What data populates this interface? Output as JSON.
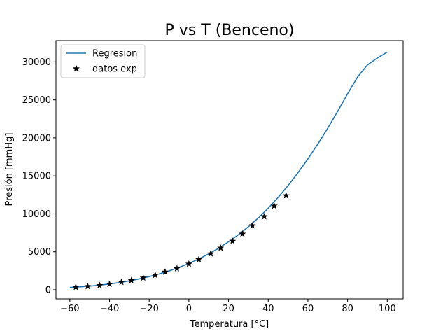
{
  "chart_data": {
    "type": "line",
    "title": "P vs T (Benceno)",
    "xlabel": "Temperatura [°C]",
    "ylabel": "Presión [mmHg]",
    "xlim": [
      -67,
      108
    ],
    "ylim": [
      -1200,
      32800
    ],
    "xticks": [
      -60,
      -40,
      -20,
      0,
      20,
      40,
      60,
      80,
      100
    ],
    "yticks": [
      0,
      5000,
      10000,
      15000,
      20000,
      25000,
      30000
    ],
    "grid": false,
    "legend_position": "top-left",
    "series": [
      {
        "name": "Regresion",
        "kind": "line",
        "color": "#1f77b4",
        "x": [
          -60,
          -55,
          -50,
          -45,
          -40,
          -35,
          -30,
          -25,
          -20,
          -15,
          -10,
          -5,
          0,
          5,
          10,
          15,
          20,
          25,
          30,
          35,
          40,
          45,
          50,
          55,
          60,
          65,
          70,
          75,
          80,
          85,
          90,
          95,
          100
        ],
        "y": [
          300,
          380,
          480,
          600,
          760,
          950,
          1170,
          1430,
          1730,
          2080,
          2480,
          2940,
          3460,
          4050,
          4720,
          5470,
          6310,
          7250,
          8300,
          9460,
          10750,
          12170,
          13730,
          15420,
          17240,
          19190,
          21280,
          23500,
          25800,
          28000,
          29600,
          30500,
          31300
        ]
      },
      {
        "name": "datos exp",
        "kind": "scatter",
        "color": "#000000",
        "marker": "star",
        "x": [
          -57,
          -51,
          -45,
          -40,
          -34,
          -29,
          -23,
          -17,
          -12,
          -6,
          0,
          5,
          11,
          16,
          22,
          27,
          32,
          38,
          43,
          49
        ],
        "y": [
          350,
          450,
          580,
          750,
          1000,
          1230,
          1570,
          1930,
          2350,
          2800,
          3400,
          4000,
          4750,
          5500,
          6400,
          7350,
          8450,
          9650,
          11050,
          12400
        ]
      }
    ]
  }
}
